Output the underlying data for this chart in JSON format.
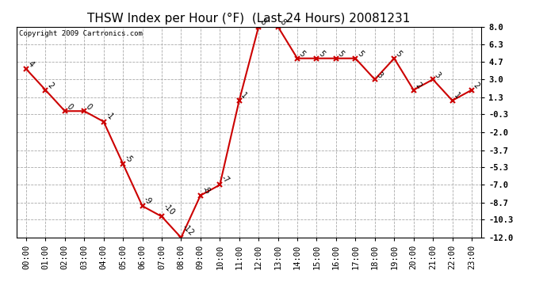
{
  "title": "THSW Index per Hour (°F)  (Last 24 Hours) 20081231",
  "copyright": "Copyright 2009 Cartronics.com",
  "hours": [
    "00:00",
    "01:00",
    "02:00",
    "03:00",
    "04:00",
    "05:00",
    "06:00",
    "07:00",
    "08:00",
    "09:00",
    "10:00",
    "11:00",
    "12:00",
    "13:00",
    "14:00",
    "15:00",
    "16:00",
    "17:00",
    "18:00",
    "19:00",
    "20:00",
    "21:00",
    "22:00",
    "23:00"
  ],
  "values": [
    4,
    2,
    0,
    0,
    -1,
    -5,
    -9,
    -10,
    -12,
    -8,
    -7,
    1,
    8,
    8,
    5,
    5,
    5,
    5,
    3,
    5,
    2,
    3,
    1,
    2
  ],
  "ylim": [
    -12.0,
    8.0
  ],
  "yticks": [
    8.0,
    6.3,
    4.7,
    3.0,
    1.3,
    -0.3,
    -2.0,
    -3.7,
    -5.3,
    -7.0,
    -8.7,
    -10.3,
    -12.0
  ],
  "line_color": "#cc0000",
  "marker_color": "#cc0000",
  "bg_color": "#ffffff",
  "plot_bg": "#ffffff",
  "grid_color": "#aaaaaa",
  "title_fontsize": 11,
  "copyright_fontsize": 6.5,
  "tick_fontsize": 7.5,
  "annot_fontsize": 7
}
